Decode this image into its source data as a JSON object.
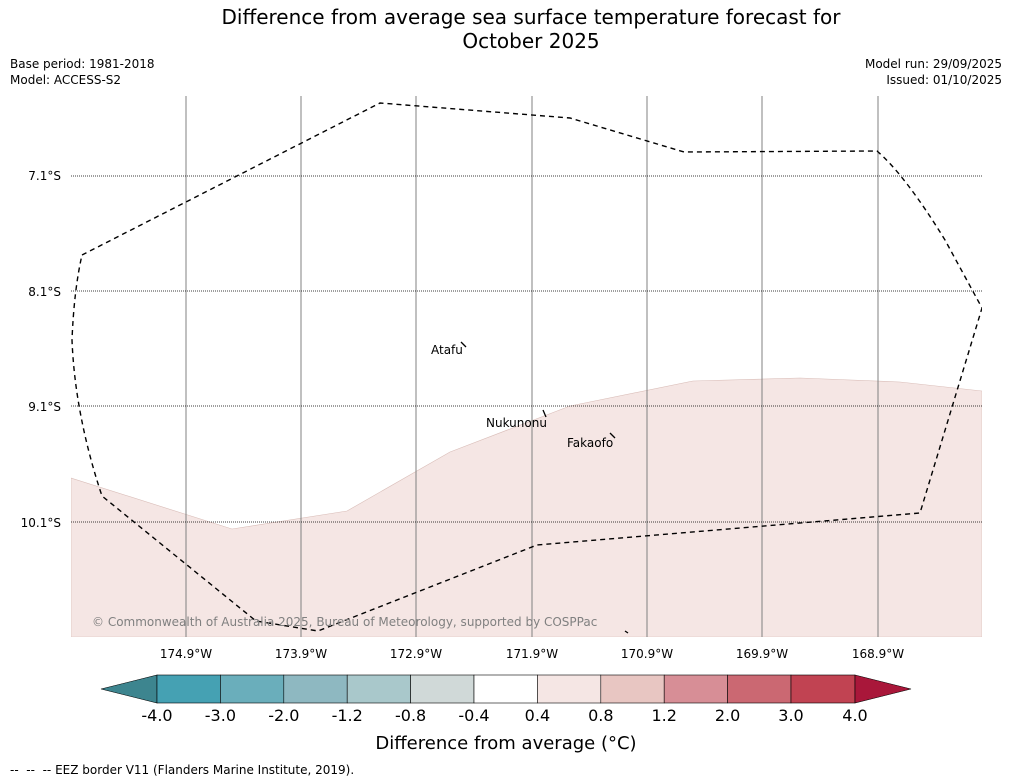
{
  "title": {
    "line1": "Difference from average sea surface temperature forecast for",
    "line2": "October 2025"
  },
  "meta": {
    "base_period": "Base period: 1981-2018",
    "model": "Model: ACCESS-S2",
    "model_run": "Model run: 29/09/2025",
    "issued": "Issued: 01/10/2025"
  },
  "map": {
    "longitude_labels": [
      "174.9°W",
      "173.9°W",
      "172.9°W",
      "171.9°W",
      "170.9°W",
      "169.9°W",
      "168.9°W"
    ],
    "latitude_labels": [
      "7.1°S",
      "8.1°S",
      "9.1°S",
      "10.1°S"
    ],
    "places": [
      "Atafu",
      "Nukunonu",
      "Fakaofo"
    ],
    "anomaly_region_fill": "#f5e6e4",
    "copyright": "© Commonwealth of Australia 2025, Bureau of Meteorology, supported by COSPPac"
  },
  "colorbar": {
    "title": "Difference from average (°C)",
    "tick_labels": [
      "-4.0",
      "-3.0",
      "-2.0",
      "-1.2",
      "-0.8",
      "-0.4",
      "0.4",
      "0.8",
      "1.2",
      "2.0",
      "3.0",
      "4.0"
    ],
    "colors": [
      "#3d858f",
      "#45a1b3",
      "#6aaebb",
      "#8eb8c1",
      "#a9c8cb",
      "#d0d9d8",
      "#ffffff",
      "#f5e6e4",
      "#e8c6c2",
      "#d78e96",
      "#cb6872",
      "#c14352",
      "#a9173a"
    ]
  },
  "legend": {
    "eez_line_sample": "--  --  --",
    "eez_label": "EEZ border V11 (Flanders Marine Institute, 2019)."
  }
}
